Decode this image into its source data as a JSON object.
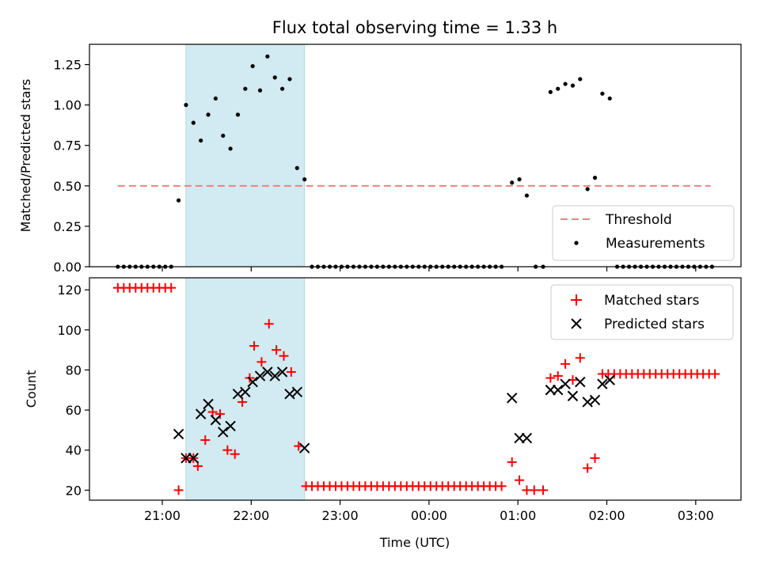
{
  "chart_data": {
    "type": "scatter",
    "title": "Flux total observing time = 1.33 h",
    "xlabel": "Time (UTC)",
    "x_ticks": [
      "21:00",
      "22:00",
      "23:00",
      "00:00",
      "01:00",
      "02:00",
      "03:00"
    ],
    "highlight_span": {
      "start": "21:16",
      "end": "22:36",
      "color": "#add8e6"
    },
    "colors": {
      "threshold": "#f08080",
      "measurements": "#000000",
      "matched": "#ff0000",
      "predicted": "#000000"
    },
    "top": {
      "ylabel": "Matched/Predicted stars",
      "ylim": [
        0,
        1.375
      ],
      "y_ticks": [
        "0.00",
        "0.25",
        "0.50",
        "0.75",
        "1.00",
        "1.25"
      ],
      "legend": {
        "position": "lower right",
        "threshold_label": "Threshold",
        "measurements_label": "Measurements"
      },
      "threshold": {
        "value": 0.5,
        "from": "20:30",
        "to": "03:10"
      },
      "measurements": [
        [
          "20:30",
          0
        ],
        [
          "20:34",
          0
        ],
        [
          "20:38",
          0
        ],
        [
          "20:42",
          0
        ],
        [
          "20:46",
          0
        ],
        [
          "20:50",
          0
        ],
        [
          "20:54",
          0
        ],
        [
          "20:58",
          0
        ],
        [
          "21:02",
          0
        ],
        [
          "21:06",
          0
        ],
        [
          "21:11",
          0.41
        ],
        [
          "21:16",
          1.0
        ],
        [
          "21:21",
          0.89
        ],
        [
          "21:26",
          0.78
        ],
        [
          "21:31",
          0.94
        ],
        [
          "21:36",
          1.04
        ],
        [
          "21:41",
          0.81
        ],
        [
          "21:46",
          0.73
        ],
        [
          "21:51",
          0.94
        ],
        [
          "21:56",
          1.1
        ],
        [
          "22:01",
          1.24
        ],
        [
          "22:06",
          1.09
        ],
        [
          "22:11",
          1.3
        ],
        [
          "22:16",
          1.17
        ],
        [
          "22:21",
          1.1
        ],
        [
          "22:26",
          1.16
        ],
        [
          "22:31",
          0.61
        ],
        [
          "22:36",
          0.54
        ],
        [
          "22:41",
          0
        ],
        [
          "22:45",
          0
        ],
        [
          "22:49",
          0
        ],
        [
          "22:53",
          0
        ],
        [
          "22:57",
          0
        ],
        [
          "23:01",
          0
        ],
        [
          "23:05",
          0
        ],
        [
          "23:09",
          0
        ],
        [
          "23:13",
          0
        ],
        [
          "23:17",
          0
        ],
        [
          "23:21",
          0
        ],
        [
          "23:25",
          0
        ],
        [
          "23:29",
          0
        ],
        [
          "23:33",
          0
        ],
        [
          "23:37",
          0
        ],
        [
          "23:41",
          0
        ],
        [
          "23:45",
          0
        ],
        [
          "23:49",
          0
        ],
        [
          "23:53",
          0
        ],
        [
          "23:57",
          0
        ],
        [
          "00:01",
          0
        ],
        [
          "00:05",
          0
        ],
        [
          "00:09",
          0
        ],
        [
          "00:13",
          0
        ],
        [
          "00:17",
          0
        ],
        [
          "00:21",
          0
        ],
        [
          "00:25",
          0
        ],
        [
          "00:29",
          0
        ],
        [
          "00:33",
          0
        ],
        [
          "00:37",
          0
        ],
        [
          "00:41",
          0
        ],
        [
          "00:45",
          0
        ],
        [
          "00:49",
          0
        ],
        [
          "00:56",
          0.52
        ],
        [
          "01:01",
          0.54
        ],
        [
          "01:06",
          0.44
        ],
        [
          "01:12",
          0
        ],
        [
          "01:17",
          0
        ],
        [
          "01:22",
          1.08
        ],
        [
          "01:27",
          1.1
        ],
        [
          "01:32",
          1.13
        ],
        [
          "01:37",
          1.12
        ],
        [
          "01:42",
          1.16
        ],
        [
          "01:47",
          0.48
        ],
        [
          "01:52",
          0.55
        ],
        [
          "01:57",
          1.07
        ],
        [
          "02:02",
          1.04
        ],
        [
          "02:07",
          0
        ],
        [
          "02:11",
          0
        ],
        [
          "02:15",
          0
        ],
        [
          "02:19",
          0
        ],
        [
          "02:23",
          0
        ],
        [
          "02:27",
          0
        ],
        [
          "02:31",
          0
        ],
        [
          "02:35",
          0
        ],
        [
          "02:39",
          0
        ],
        [
          "02:43",
          0
        ],
        [
          "02:47",
          0
        ],
        [
          "02:51",
          0
        ],
        [
          "02:55",
          0
        ],
        [
          "02:59",
          0
        ],
        [
          "03:03",
          0
        ],
        [
          "03:07",
          0
        ],
        [
          "03:11",
          0
        ]
      ]
    },
    "bottom": {
      "ylabel": "Count",
      "ylim": [
        15,
        126
      ],
      "y_ticks": [
        "20",
        "40",
        "60",
        "80",
        "100",
        "120"
      ],
      "legend": {
        "position": "upper right",
        "matched_label": "Matched stars",
        "predicted_label": "Predicted stars"
      },
      "matched": [
        [
          "20:30",
          121
        ],
        [
          "20:34",
          121
        ],
        [
          "20:38",
          121
        ],
        [
          "20:42",
          121
        ],
        [
          "20:46",
          121
        ],
        [
          "20:50",
          121
        ],
        [
          "20:54",
          121
        ],
        [
          "20:58",
          121
        ],
        [
          "21:02",
          121
        ],
        [
          "21:06",
          121
        ],
        [
          "21:11",
          20
        ],
        [
          "21:16",
          36
        ],
        [
          "21:21",
          36
        ],
        [
          "21:24",
          32
        ],
        [
          "21:29",
          45
        ],
        [
          "21:34",
          59
        ],
        [
          "21:39",
          58
        ],
        [
          "21:44",
          40
        ],
        [
          "21:49",
          38
        ],
        [
          "21:54",
          64
        ],
        [
          "21:59",
          76
        ],
        [
          "22:02",
          92
        ],
        [
          "22:07",
          84
        ],
        [
          "22:12",
          103
        ],
        [
          "22:17",
          90
        ],
        [
          "22:22",
          87
        ],
        [
          "22:27",
          79
        ],
        [
          "22:32",
          42
        ],
        [
          "22:37",
          22
        ],
        [
          "22:41",
          22
        ],
        [
          "22:45",
          22
        ],
        [
          "22:49",
          22
        ],
        [
          "22:53",
          22
        ],
        [
          "22:57",
          22
        ],
        [
          "23:01",
          22
        ],
        [
          "23:05",
          22
        ],
        [
          "23:09",
          22
        ],
        [
          "23:13",
          22
        ],
        [
          "23:17",
          22
        ],
        [
          "23:21",
          22
        ],
        [
          "23:25",
          22
        ],
        [
          "23:29",
          22
        ],
        [
          "23:33",
          22
        ],
        [
          "23:37",
          22
        ],
        [
          "23:41",
          22
        ],
        [
          "23:45",
          22
        ],
        [
          "23:49",
          22
        ],
        [
          "23:53",
          22
        ],
        [
          "23:57",
          22
        ],
        [
          "00:01",
          22
        ],
        [
          "00:05",
          22
        ],
        [
          "00:09",
          22
        ],
        [
          "00:13",
          22
        ],
        [
          "00:17",
          22
        ],
        [
          "00:21",
          22
        ],
        [
          "00:25",
          22
        ],
        [
          "00:29",
          22
        ],
        [
          "00:33",
          22
        ],
        [
          "00:37",
          22
        ],
        [
          "00:41",
          22
        ],
        [
          "00:45",
          22
        ],
        [
          "00:49",
          22
        ],
        [
          "00:56",
          34
        ],
        [
          "01:01",
          25
        ],
        [
          "01:06",
          20
        ],
        [
          "01:11",
          20
        ],
        [
          "01:17",
          20
        ],
        [
          "01:22",
          76
        ],
        [
          "01:27",
          77
        ],
        [
          "01:32",
          83
        ],
        [
          "01:37",
          75
        ],
        [
          "01:42",
          86
        ],
        [
          "01:47",
          31
        ],
        [
          "01:52",
          36
        ],
        [
          "01:57",
          78
        ],
        [
          "02:01",
          78
        ],
        [
          "02:05",
          78
        ],
        [
          "02:09",
          78
        ],
        [
          "02:13",
          78
        ],
        [
          "02:17",
          78
        ],
        [
          "02:21",
          78
        ],
        [
          "02:25",
          78
        ],
        [
          "02:29",
          78
        ],
        [
          "02:33",
          78
        ],
        [
          "02:37",
          78
        ],
        [
          "02:41",
          78
        ],
        [
          "02:45",
          78
        ],
        [
          "02:49",
          78
        ],
        [
          "02:53",
          78
        ],
        [
          "02:57",
          78
        ],
        [
          "03:01",
          78
        ],
        [
          "03:05",
          78
        ],
        [
          "03:09",
          78
        ],
        [
          "03:13",
          78
        ]
      ],
      "predicted": [
        [
          "21:11",
          48
        ],
        [
          "21:16",
          36
        ],
        [
          "21:21",
          36
        ],
        [
          "21:26",
          58
        ],
        [
          "21:31",
          63
        ],
        [
          "21:36",
          55
        ],
        [
          "21:41",
          49
        ],
        [
          "21:46",
          52
        ],
        [
          "21:51",
          68
        ],
        [
          "21:56",
          69
        ],
        [
          "22:01",
          74
        ],
        [
          "22:06",
          77
        ],
        [
          "22:11",
          79
        ],
        [
          "22:16",
          77
        ],
        [
          "22:21",
          79
        ],
        [
          "22:26",
          68
        ],
        [
          "22:31",
          69
        ],
        [
          "22:36",
          41
        ],
        [
          "00:56",
          66
        ],
        [
          "01:01",
          46
        ],
        [
          "01:06",
          46
        ],
        [
          "01:22",
          70
        ],
        [
          "01:27",
          70
        ],
        [
          "01:32",
          73
        ],
        [
          "01:37",
          67
        ],
        [
          "01:42",
          74
        ],
        [
          "01:47",
          64
        ],
        [
          "01:52",
          65
        ],
        [
          "01:57",
          73
        ],
        [
          "02:02",
          75
        ]
      ]
    }
  }
}
